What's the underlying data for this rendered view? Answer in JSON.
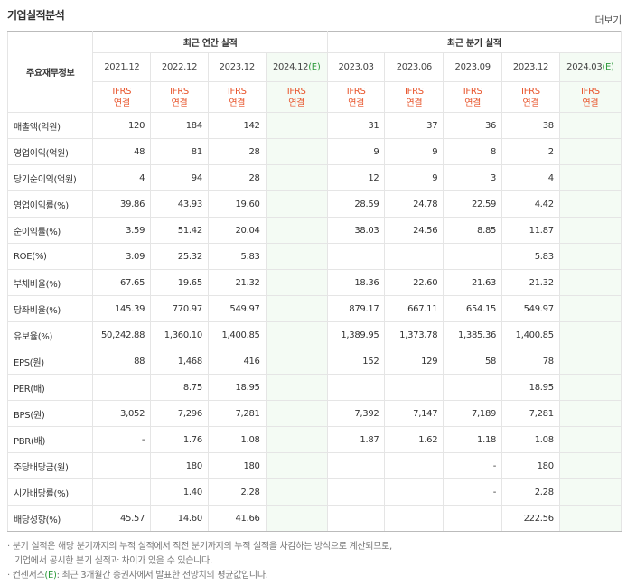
{
  "title": "기업실적분석",
  "more_label": "더보기",
  "header": {
    "row_label": "주요재무정보",
    "annual_title": "최근 연간 실적",
    "quarter_title": "최근 분기 실적",
    "annual_periods": [
      "2021.12",
      "2022.12",
      "2023.12",
      "2024.12(E)"
    ],
    "quarter_periods": [
      "2023.03",
      "2023.06",
      "2023.09",
      "2023.12",
      "2024.03(E)"
    ],
    "ifrs_top": "IFRS",
    "ifrs_bottom": "연결"
  },
  "rows": [
    {
      "label": "매출액(억원)",
      "annual": [
        "120",
        "184",
        "142",
        ""
      ],
      "quarter": [
        "31",
        "37",
        "36",
        "38",
        ""
      ]
    },
    {
      "label": "영업이익(억원)",
      "annual": [
        "48",
        "81",
        "28",
        ""
      ],
      "quarter": [
        "9",
        "9",
        "8",
        "2",
        ""
      ]
    },
    {
      "label": "당기순이익(억원)",
      "annual": [
        "4",
        "94",
        "28",
        ""
      ],
      "quarter": [
        "12",
        "9",
        "3",
        "4",
        ""
      ]
    },
    {
      "label": "영업이익률(%)",
      "annual": [
        "39.86",
        "43.93",
        "19.60",
        ""
      ],
      "quarter": [
        "28.59",
        "24.78",
        "22.59",
        "4.42",
        ""
      ]
    },
    {
      "label": "순이익률(%)",
      "annual": [
        "3.59",
        "51.42",
        "20.04",
        ""
      ],
      "quarter": [
        "38.03",
        "24.56",
        "8.85",
        "11.87",
        ""
      ]
    },
    {
      "label": "ROE(%)",
      "annual": [
        "3.09",
        "25.32",
        "5.83",
        ""
      ],
      "quarter": [
        "",
        "",
        "",
        "5.83",
        ""
      ]
    },
    {
      "label": "부채비율(%)",
      "annual": [
        "67.65",
        "19.65",
        "21.32",
        ""
      ],
      "quarter": [
        "18.36",
        "22.60",
        "21.63",
        "21.32",
        ""
      ]
    },
    {
      "label": "당좌비율(%)",
      "annual": [
        "145.39",
        "770.97",
        "549.97",
        ""
      ],
      "quarter": [
        "879.17",
        "667.11",
        "654.15",
        "549.97",
        ""
      ]
    },
    {
      "label": "유보율(%)",
      "annual": [
        "50,242.88",
        "1,360.10",
        "1,400.85",
        ""
      ],
      "quarter": [
        "1,389.95",
        "1,373.78",
        "1,385.36",
        "1,400.85",
        ""
      ]
    },
    {
      "label": "EPS(원)",
      "annual": [
        "88",
        "1,468",
        "416",
        ""
      ],
      "quarter": [
        "152",
        "129",
        "58",
        "78",
        ""
      ]
    },
    {
      "label": "PER(배)",
      "annual": [
        "",
        "8.75",
        "18.95",
        ""
      ],
      "quarter": [
        "",
        "",
        "",
        "18.95",
        ""
      ]
    },
    {
      "label": "BPS(원)",
      "annual": [
        "3,052",
        "7,296",
        "7,281",
        ""
      ],
      "quarter": [
        "7,392",
        "7,147",
        "7,189",
        "7,281",
        ""
      ]
    },
    {
      "label": "PBR(배)",
      "annual": [
        "-",
        "1.76",
        "1.08",
        ""
      ],
      "quarter": [
        "1.87",
        "1.62",
        "1.18",
        "1.08",
        ""
      ]
    },
    {
      "label": "주당배당금(원)",
      "annual": [
        "",
        "180",
        "180",
        ""
      ],
      "quarter": [
        "",
        "",
        "-",
        "180",
        ""
      ]
    },
    {
      "label": "시가배당률(%)",
      "annual": [
        "",
        "1.40",
        "2.28",
        ""
      ],
      "quarter": [
        "",
        "",
        "-",
        "2.28",
        ""
      ]
    },
    {
      "label": "배당성향(%)",
      "annual": [
        "45.57",
        "14.60",
        "41.66",
        ""
      ],
      "quarter": [
        "",
        "",
        "",
        "222.56",
        ""
      ]
    }
  ],
  "notes": {
    "note1_line1": "분기 실적은 해당 분기까지의 누적 실적에서 직전 분기까지의 누적 실적을 차감하는 방식으로 계산되므로,",
    "note1_line2": "기업에서 공시한 분기 실적과 차이가 있을 수 있습니다.",
    "note2_prefix": "컨센서스",
    "note2_e": "(E)",
    "note2_suffix": ": 최근 3개월간 증권사에서 발표한 전망치의 평균값입니다."
  },
  "colors": {
    "ifrs": "#e8542b",
    "estimate_bg": "#f4fbf4",
    "estimate_text": "#2e9a3c"
  }
}
